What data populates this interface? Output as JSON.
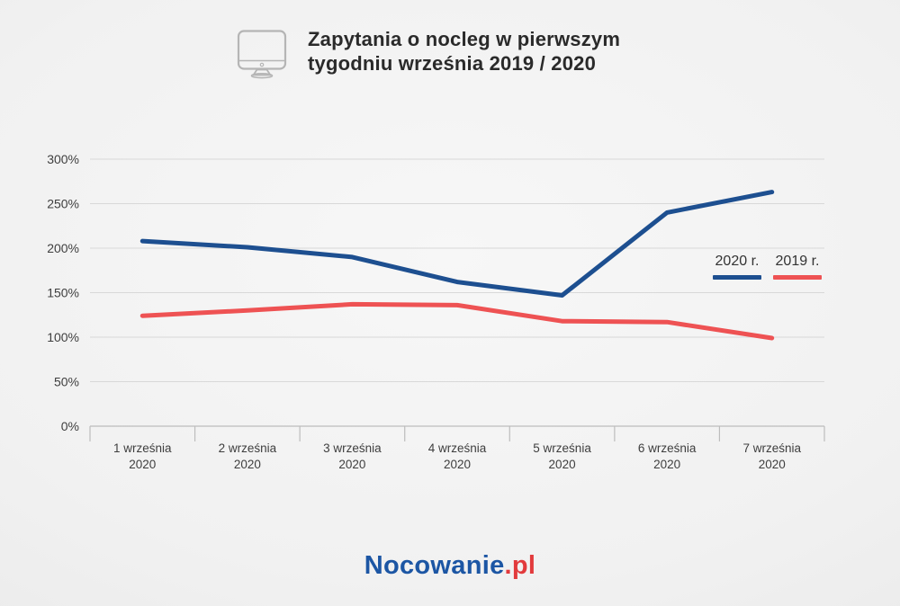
{
  "header": {
    "icon": "monitor-icon",
    "title_line1": "Zapytania o nocleg w pierwszym",
    "title_line2": "tygodniu września 2019 / 2020"
  },
  "chart_data": {
    "type": "line",
    "title": "Zapytania o nocleg w pierwszym tygodniu września 2019 / 2020",
    "categories": [
      [
        "1 września",
        "2020"
      ],
      [
        "2 września",
        "2020"
      ],
      [
        "3 września",
        "2020"
      ],
      [
        "4 września",
        "2020"
      ],
      [
        "5 września",
        "2020"
      ],
      [
        "6 września",
        "2020"
      ],
      [
        "7 września",
        "2020"
      ]
    ],
    "series": [
      {
        "name": "2020 r.",
        "color": "#1d4f90",
        "values": [
          208,
          201,
          190,
          162,
          147,
          240,
          263
        ]
      },
      {
        "name": "2019 r.",
        "color": "#ee5253",
        "values": [
          124,
          130,
          137,
          136,
          118,
          117,
          99
        ]
      }
    ],
    "y_ticks": [
      0,
      50,
      100,
      150,
      200,
      250,
      300
    ],
    "y_tick_suffix": "%",
    "ylim": [
      0,
      330
    ],
    "grid": "horizontal",
    "legend_position": "middle-right",
    "axis_color": "#bdbdbd",
    "grid_color": "#d8d8d8",
    "tick_label_color": "#3e3e3e"
  },
  "footer": {
    "logo_text": "Nocowanie",
    "logo_suffix": ".pl",
    "logo_primary_color": "#1c56a4",
    "logo_suffix_color": "#e23a3c"
  }
}
